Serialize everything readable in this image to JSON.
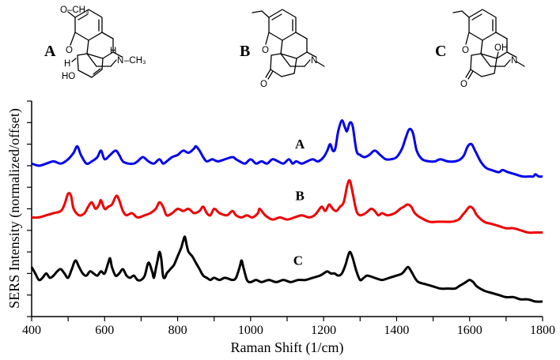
{
  "chart_data": {
    "type": "line",
    "title": "",
    "xlabel": "Raman Shift (1/cm)",
    "ylabel": "SERS Intensity (normalized/offset)",
    "xlim": [
      400,
      1800
    ],
    "ylim": [
      0,
      1
    ],
    "x_ticks": [
      400,
      600,
      800,
      1000,
      1200,
      1400,
      1600,
      1800
    ],
    "grid": false,
    "legend": "none",
    "series": [
      {
        "name": "A",
        "label": "A",
        "color": "#0000ee",
        "x": [
          400,
          420,
          440,
          460,
          480,
          500,
          515,
          525,
          535,
          550,
          565,
          580,
          590,
          600,
          615,
          630,
          640,
          650,
          665,
          680,
          690,
          705,
          720,
          735,
          750,
          760,
          770,
          785,
          800,
          815,
          830,
          845,
          850,
          860,
          870,
          880,
          895,
          910,
          930,
          950,
          960,
          970,
          985,
          1000,
          1015,
          1030,
          1045,
          1060,
          1075,
          1090,
          1105,
          1115,
          1125,
          1140,
          1155,
          1170,
          1185,
          1200,
          1210,
          1218,
          1225,
          1232,
          1240,
          1250,
          1258,
          1264,
          1272,
          1280,
          1290,
          1300,
          1312,
          1325,
          1340,
          1355,
          1370,
          1385,
          1400,
          1415,
          1425,
          1435,
          1445,
          1455,
          1470,
          1490,
          1505,
          1520,
          1540,
          1560,
          1575,
          1585,
          1595,
          1605,
          1615,
          1630,
          1645,
          1660,
          1680,
          1690,
          1705,
          1725,
          1745,
          1765,
          1775,
          1780,
          1790,
          1800
        ],
        "y": [
          0.71,
          0.7,
          0.71,
          0.72,
          0.71,
          0.73,
          0.76,
          0.79,
          0.75,
          0.71,
          0.72,
          0.74,
          0.77,
          0.73,
          0.75,
          0.77,
          0.75,
          0.72,
          0.71,
          0.71,
          0.72,
          0.74,
          0.72,
          0.71,
          0.73,
          0.71,
          0.72,
          0.74,
          0.75,
          0.77,
          0.76,
          0.78,
          0.79,
          0.77,
          0.74,
          0.72,
          0.73,
          0.72,
          0.73,
          0.74,
          0.73,
          0.72,
          0.71,
          0.73,
          0.71,
          0.72,
          0.71,
          0.73,
          0.72,
          0.71,
          0.73,
          0.71,
          0.72,
          0.71,
          0.72,
          0.73,
          0.72,
          0.74,
          0.77,
          0.8,
          0.77,
          0.78,
          0.86,
          0.91,
          0.88,
          0.86,
          0.9,
          0.88,
          0.77,
          0.75,
          0.74,
          0.75,
          0.77,
          0.75,
          0.73,
          0.73,
          0.74,
          0.78,
          0.83,
          0.87,
          0.85,
          0.77,
          0.73,
          0.72,
          0.72,
          0.73,
          0.72,
          0.72,
          0.73,
          0.75,
          0.79,
          0.8,
          0.77,
          0.72,
          0.69,
          0.68,
          0.67,
          0.68,
          0.67,
          0.66,
          0.65,
          0.65,
          0.65,
          0.66,
          0.65,
          0.65
        ]
      },
      {
        "name": "B",
        "label": "B",
        "color": "#ee0000",
        "x": [
          400,
          420,
          440,
          460,
          480,
          490,
          500,
          508,
          515,
          530,
          545,
          555,
          565,
          575,
          585,
          590,
          600,
          610,
          620,
          632,
          640,
          650,
          660,
          675,
          690,
          710,
          725,
          740,
          750,
          760,
          770,
          785,
          800,
          815,
          830,
          845,
          860,
          870,
          880,
          890,
          900,
          915,
          935,
          950,
          960,
          975,
          990,
          1005,
          1020,
          1025,
          1040,
          1060,
          1080,
          1100,
          1120,
          1140,
          1160,
          1175,
          1185,
          1195,
          1205,
          1215,
          1225,
          1235,
          1245,
          1255,
          1265,
          1272,
          1280,
          1290,
          1300,
          1315,
          1330,
          1340,
          1350,
          1360,
          1375,
          1395,
          1410,
          1420,
          1430,
          1440,
          1450,
          1465,
          1490,
          1510,
          1530,
          1550,
          1570,
          1580,
          1590,
          1600,
          1610,
          1620,
          1640,
          1660,
          1680,
          1700,
          1720,
          1740,
          1760,
          1780,
          1800
        ],
        "y": [
          0.46,
          0.46,
          0.47,
          0.48,
          0.49,
          0.52,
          0.57,
          0.56,
          0.5,
          0.47,
          0.48,
          0.51,
          0.53,
          0.5,
          0.52,
          0.54,
          0.5,
          0.51,
          0.52,
          0.56,
          0.54,
          0.49,
          0.47,
          0.48,
          0.46,
          0.47,
          0.48,
          0.5,
          0.53,
          0.51,
          0.47,
          0.48,
          0.5,
          0.49,
          0.5,
          0.48,
          0.49,
          0.51,
          0.48,
          0.47,
          0.5,
          0.48,
          0.47,
          0.49,
          0.47,
          0.46,
          0.47,
          0.46,
          0.48,
          0.5,
          0.47,
          0.45,
          0.46,
          0.45,
          0.46,
          0.47,
          0.46,
          0.47,
          0.49,
          0.51,
          0.49,
          0.52,
          0.5,
          0.49,
          0.51,
          0.53,
          0.61,
          0.63,
          0.57,
          0.49,
          0.47,
          0.48,
          0.5,
          0.49,
          0.47,
          0.48,
          0.47,
          0.48,
          0.5,
          0.51,
          0.52,
          0.51,
          0.48,
          0.46,
          0.44,
          0.44,
          0.44,
          0.44,
          0.45,
          0.47,
          0.49,
          0.51,
          0.5,
          0.47,
          0.44,
          0.43,
          0.42,
          0.41,
          0.41,
          0.4,
          0.39,
          0.39,
          0.39
        ]
      },
      {
        "name": "C",
        "label": "C",
        "color": "#000000",
        "x": [
          400,
          410,
          420,
          430,
          440,
          450,
          460,
          470,
          480,
          490,
          500,
          510,
          520,
          530,
          540,
          550,
          560,
          570,
          580,
          590,
          600,
          610,
          615,
          620,
          630,
          640,
          650,
          660,
          670,
          680,
          690,
          700,
          710,
          720,
          730,
          735,
          740,
          745,
          750,
          755,
          760,
          765,
          770,
          775,
          780,
          790,
          800,
          810,
          815,
          820,
          825,
          830,
          840,
          850,
          860,
          870,
          880,
          890,
          900,
          915,
          930,
          950,
          960,
          970,
          975,
          980,
          990,
          1000,
          1015,
          1030,
          1050,
          1070,
          1090,
          1110,
          1130,
          1150,
          1170,
          1190,
          1200,
          1210,
          1220,
          1230,
          1240,
          1250,
          1260,
          1265,
          1272,
          1280,
          1290,
          1300,
          1310,
          1320,
          1340,
          1360,
          1380,
          1400,
          1415,
          1425,
          1432,
          1440,
          1450,
          1460,
          1480,
          1500,
          1520,
          1540,
          1560,
          1570,
          1580,
          1590,
          1600,
          1610,
          1620,
          1640,
          1660,
          1680,
          1700,
          1720,
          1740,
          1760,
          1780,
          1800
        ],
        "y": [
          0.23,
          0.2,
          0.17,
          0.18,
          0.2,
          0.18,
          0.19,
          0.21,
          0.22,
          0.2,
          0.18,
          0.22,
          0.26,
          0.23,
          0.2,
          0.19,
          0.21,
          0.2,
          0.19,
          0.21,
          0.2,
          0.25,
          0.27,
          0.23,
          0.19,
          0.2,
          0.22,
          0.19,
          0.18,
          0.19,
          0.17,
          0.17,
          0.19,
          0.25,
          0.21,
          0.18,
          0.22,
          0.26,
          0.3,
          0.27,
          0.19,
          0.18,
          0.2,
          0.21,
          0.22,
          0.24,
          0.28,
          0.32,
          0.35,
          0.37,
          0.33,
          0.3,
          0.28,
          0.25,
          0.22,
          0.19,
          0.18,
          0.17,
          0.18,
          0.17,
          0.18,
          0.17,
          0.18,
          0.23,
          0.26,
          0.23,
          0.17,
          0.16,
          0.17,
          0.16,
          0.17,
          0.16,
          0.17,
          0.16,
          0.17,
          0.17,
          0.18,
          0.19,
          0.2,
          0.21,
          0.2,
          0.2,
          0.19,
          0.2,
          0.24,
          0.27,
          0.3,
          0.27,
          0.21,
          0.17,
          0.18,
          0.19,
          0.18,
          0.17,
          0.18,
          0.19,
          0.2,
          0.22,
          0.23,
          0.21,
          0.18,
          0.16,
          0.15,
          0.14,
          0.13,
          0.13,
          0.13,
          0.14,
          0.15,
          0.16,
          0.17,
          0.16,
          0.14,
          0.12,
          0.11,
          0.1,
          0.09,
          0.09,
          0.08,
          0.08,
          0.07,
          0.07
        ]
      }
    ]
  },
  "structures": [
    {
      "letter": "A",
      "methoxy": "O–CH₃",
      "ring_o": "O",
      "h_alpha": "H",
      "h_bridge": "H",
      "nitrogen": "N",
      "n_methyl": "–CH₃",
      "hydroxyl": "HO"
    },
    {
      "letter": "B",
      "ring_o": "O",
      "carbonyl_o": "O",
      "nitrogen": "N"
    },
    {
      "letter": "C",
      "ring_o": "O",
      "carbonyl_o": "O",
      "hydroxy_oh": "OH",
      "nitrogen": "N"
    }
  ]
}
